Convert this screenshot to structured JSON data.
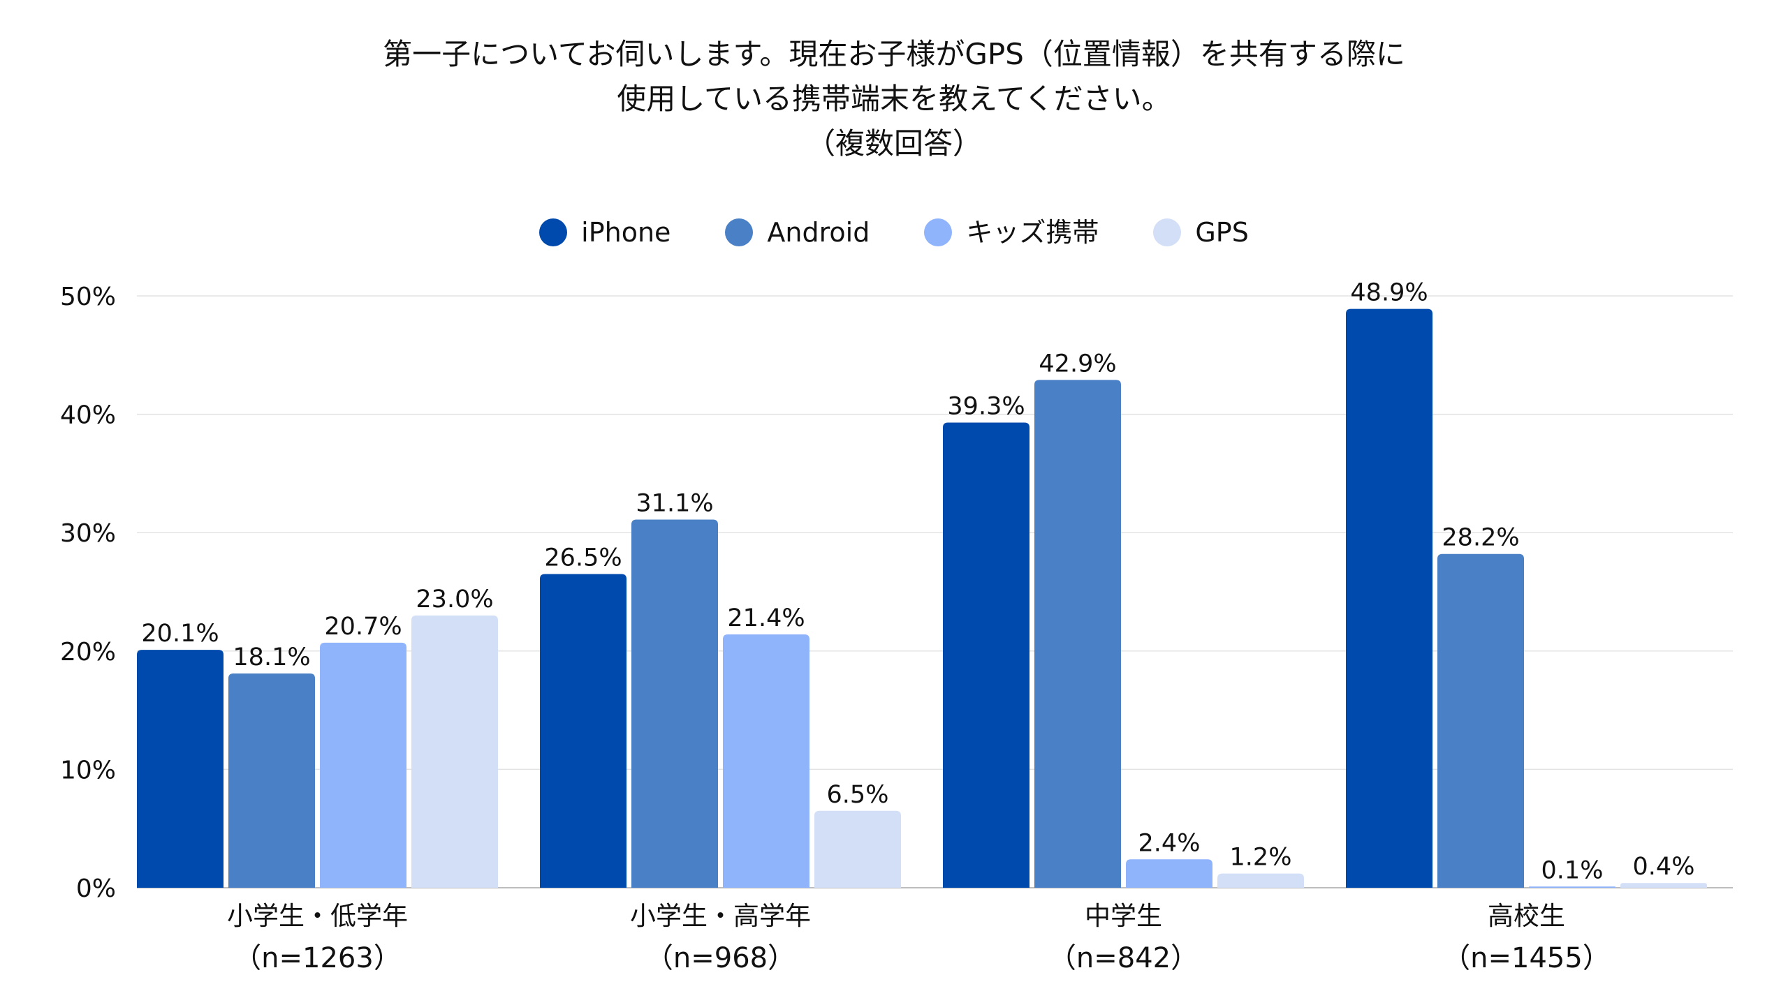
{
  "chart_data": {
    "type": "bar",
    "title_lines": [
      "第一子についてお伺いします。現在お子様がGPS（位置情報）を共有する際に",
      "使用している携帯端末を教えてください。",
      "（複数回答）"
    ],
    "categories": [
      {
        "label": "小学生・低学年",
        "n": "（n=1263）"
      },
      {
        "label": "小学生・高学年",
        "n": "（n=968）"
      },
      {
        "label": "中学生",
        "n": "（n=842）"
      },
      {
        "label": "高校生",
        "n": "（n=1455）"
      }
    ],
    "series": [
      {
        "name": "iPhone",
        "color": "#004AAD",
        "values": [
          20.1,
          26.5,
          39.3,
          48.9
        ],
        "labels": [
          "20.1%",
          "26.5%",
          "39.3%",
          "48.9%"
        ]
      },
      {
        "name": "Android",
        "color": "#4A80C6",
        "values": [
          18.1,
          31.1,
          42.9,
          28.2
        ],
        "labels": [
          "18.1%",
          "31.1%",
          "42.9%",
          "28.2%"
        ]
      },
      {
        "name": "キッズ携帯",
        "color": "#8FB4FC",
        "values": [
          20.7,
          21.4,
          2.4,
          0.1
        ],
        "labels": [
          "20.7%",
          "21.4%",
          "2.4%",
          "0.1%"
        ]
      },
      {
        "name": "GPS",
        "color": "#D2DFF7",
        "values": [
          23.0,
          6.5,
          1.2,
          0.4
        ],
        "labels": [
          "23.0%",
          "6.5%",
          "1.2%",
          "0.4%"
        ]
      }
    ],
    "ylim": [
      0,
      50
    ],
    "yticks": [
      0,
      10,
      20,
      30,
      40,
      50
    ],
    "ytick_labels": [
      "0%",
      "10%",
      "20%",
      "30%",
      "40%",
      "50%"
    ],
    "xlabel": "",
    "ylabel": "",
    "grid": true,
    "legend_position": "top-center"
  }
}
